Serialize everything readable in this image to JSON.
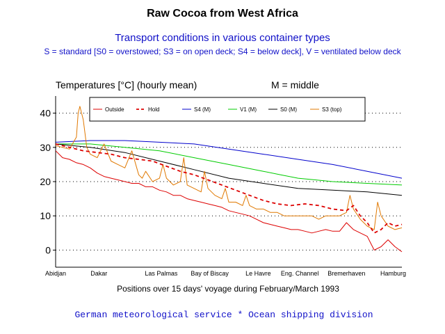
{
  "chart_data": {
    "type": "line",
    "title": "Raw Cocoa from West Africa",
    "subtitle": "Transport conditions in various container types",
    "legend_description": "S = standard [S0 = overstowed; S3 = on open deck; S4 = below deck], V = ventilated below deck",
    "ylabel": "Temperatures [°C] (hourly mean)",
    "note": "M = middle",
    "xlabel": "Positions over 15 days' voyage during February/March 1993",
    "footer": "German meteorological service * Ocean shipping division",
    "ylim": [
      -5,
      45
    ],
    "yticks": [
      0,
      10,
      20,
      30,
      40
    ],
    "xlim": [
      0,
      100
    ],
    "x_tick_labels": [
      "Abidjan",
      "Dakar",
      "Las Palmas",
      "Bay of Biscay",
      "Le Havre",
      "Eng. Channel",
      "Bremerhaven",
      "Hamburg"
    ],
    "x_tick_positions": [
      0,
      12.5,
      30.5,
      44.5,
      58.5,
      70.5,
      84,
      97.5
    ],
    "grid": "horizontal dotted",
    "legend_position": "top",
    "series": [
      {
        "name": "Outside",
        "color": "#dd0000",
        "dash": "solid",
        "x": [
          0,
          2,
          4,
          6,
          8,
          10,
          12,
          14,
          16,
          18,
          20,
          22,
          24,
          26,
          28,
          30,
          32,
          34,
          36,
          38,
          40,
          42,
          44,
          46,
          48,
          50,
          52,
          54,
          56,
          58,
          60,
          62,
          64,
          66,
          68,
          70,
          72,
          74,
          76,
          78,
          80,
          82,
          84,
          85,
          86,
          88,
          90,
          91,
          92,
          94,
          96,
          98,
          100
        ],
        "y": [
          29,
          27,
          26.5,
          25.5,
          25,
          24,
          22.5,
          21.5,
          21,
          20.5,
          20,
          19.5,
          19.5,
          18.5,
          18.5,
          17.5,
          17,
          16,
          16,
          15,
          14.5,
          14,
          13.5,
          13,
          12.5,
          11.5,
          11,
          10.5,
          10,
          9,
          8,
          7.5,
          7,
          6.5,
          6,
          6,
          5.5,
          5,
          5.5,
          6,
          5.5,
          5.5,
          8,
          7,
          6,
          5,
          4,
          2,
          0,
          1,
          3,
          1,
          -0.5
        ]
      },
      {
        "name": "Hold",
        "color": "#dd0000",
        "dash": "dashed",
        "x": [
          0,
          4,
          8,
          12,
          16,
          20,
          24,
          28,
          32,
          36,
          40,
          44,
          48,
          52,
          56,
          60,
          64,
          68,
          72,
          76,
          80,
          84,
          86,
          88,
          90,
          92,
          94,
          96,
          98,
          100
        ],
        "y": [
          31,
          30,
          29,
          28.5,
          28,
          27,
          26.5,
          26,
          24.5,
          23,
          22,
          20.5,
          19,
          17.5,
          16,
          14.5,
          13.5,
          13,
          13.5,
          13,
          12,
          11.5,
          13,
          10,
          8,
          5,
          6,
          8,
          7,
          7.5
        ]
      },
      {
        "name": "S4 (M)",
        "color": "#0000cc",
        "dash": "solid",
        "x": [
          0,
          10,
          20,
          30,
          40,
          50,
          60,
          70,
          80,
          90,
          100
        ],
        "y": [
          31.5,
          32,
          32,
          31.5,
          31,
          29.5,
          28,
          26.5,
          25,
          23,
          21
        ]
      },
      {
        "name": "V1 (M)",
        "color": "#00cc00",
        "dash": "solid",
        "x": [
          0,
          10,
          20,
          30,
          40,
          50,
          60,
          65,
          70,
          75,
          80,
          90,
          100
        ],
        "y": [
          31,
          31,
          30,
          29,
          27,
          25,
          23,
          22,
          21,
          20.5,
          20,
          19.5,
          19
        ]
      },
      {
        "name": "S0 (M)",
        "color": "#000000",
        "dash": "solid",
        "x": [
          0,
          10,
          20,
          30,
          40,
          50,
          60,
          70,
          80,
          90,
          95,
          100
        ],
        "y": [
          31,
          30,
          28.5,
          26,
          23.5,
          21,
          19.5,
          18,
          17.5,
          17,
          16.5,
          16
        ]
      },
      {
        "name": "S3 (top)",
        "color": "#e07800",
        "dash": "solid",
        "x": [
          0,
          2,
          4,
          6,
          6.5,
          7,
          8,
          9,
          10,
          12,
          14,
          16,
          18,
          20,
          22,
          24,
          25,
          26,
          28,
          30,
          31,
          32,
          34,
          36,
          37,
          38,
          40,
          42,
          43,
          44,
          46,
          48,
          49,
          50,
          52,
          54,
          55,
          56,
          58,
          60,
          62,
          64,
          66,
          68,
          70,
          72,
          74,
          76,
          78,
          80,
          82,
          84,
          85,
          86,
          88,
          90,
          92,
          93,
          94,
          96,
          98,
          100
        ],
        "y": [
          30.5,
          30,
          29.5,
          33,
          40,
          42,
          38,
          30,
          28,
          27,
          31,
          26,
          25,
          24,
          29,
          22,
          21,
          23,
          20,
          21,
          25,
          21,
          19,
          20,
          27,
          19,
          18,
          17,
          23,
          18,
          16,
          15,
          18,
          14,
          14,
          13,
          16,
          13,
          12,
          12,
          11,
          11,
          10,
          10,
          10,
          10,
          10,
          9,
          10,
          10,
          10,
          11,
          16,
          12,
          9,
          7,
          6,
          14,
          10,
          7,
          6,
          6.5
        ]
      }
    ]
  }
}
